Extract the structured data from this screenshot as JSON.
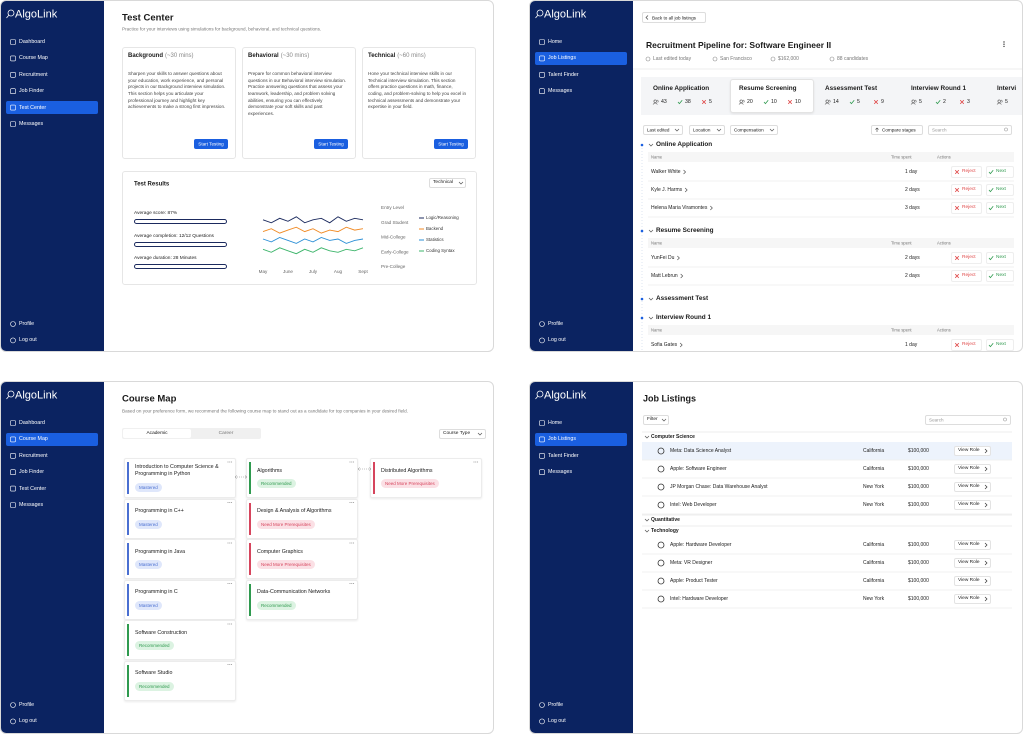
{
  "test_center": {
    "sidebar": {
      "logo": "AlgoLink",
      "nav": [
        "Dashboard",
        "Course Map",
        "Recruitment",
        "Job Finder",
        "Test Center",
        "Messages"
      ],
      "active": 4,
      "footer": [
        "Profile",
        "Log out"
      ]
    },
    "title": "Test Center",
    "subtitle": "Practice for your interviews using simulations for background, behavioral, and technical questions.",
    "cards": [
      {
        "title": "Background",
        "duration": "(~30 mins)",
        "text": "Sharpen your skills to answer questions about your education, work experience, and personal projects in our Background interview simulation. This section helps you articulate your professional journey and highlight key achievements to make a strong first impression.",
        "button": "Start Testing"
      },
      {
        "title": "Behavioral",
        "duration": "(~30 mins)",
        "text": "Prepare for common behavioral interview questions in our Behavioral interview simulation. Practice answering questions that assess your teamwork, leadership, and problem solving abilities, ensuring you can effectively demonstrate your soft skills and past experiences.",
        "button": "Start Testing"
      },
      {
        "title": "Technical",
        "duration": "(~60 mins)",
        "text": "Hone your technical interview skills in our Technical interview simulation. This section offers practice questions in math, finance, coding, and problem-solving to help you excel in technical assessments and demonstrate your expertise in your field.",
        "button": "Start Testing"
      }
    ],
    "results": {
      "title": "Test Results",
      "filter": "Technical",
      "stats": [
        "Average score: 87%",
        "Average completion: 12/12 Questions",
        "Average duration: 28 Minutes"
      ],
      "chart_data": {
        "type": "line",
        "categories": [
          "May",
          null,
          null,
          "June",
          null,
          null,
          "July",
          null,
          null,
          "Aug",
          null,
          null,
          "Sept"
        ],
        "ylim": [
          0,
          4
        ],
        "yticks": [
          {
            "value": 4,
            "label": "Entry Level"
          },
          {
            "value": 3,
            "label": "Grad Student"
          },
          {
            "value": 2,
            "label": "Mid-College"
          },
          {
            "value": 1,
            "label": "Early-College"
          },
          {
            "value": 0,
            "label": "Pre-College"
          }
        ],
        "series": [
          {
            "name": "Logic/Reasoning",
            "color": "#1b2a5e",
            "values": [
              3.2,
              3.0,
              3.3,
              3.1,
              3.4,
              3.0,
              3.2,
              3.3,
              3.0,
              3.4,
              3.1,
              3.3,
              3.2
            ]
          },
          {
            "name": "Backend",
            "color": "#f08a24",
            "values": [
              2.4,
              2.6,
              2.3,
              2.5,
              2.7,
              2.4,
              2.6,
              2.3,
              2.5,
              2.4,
              2.7,
              2.5,
              2.6
            ]
          },
          {
            "name": "Statistics",
            "color": "#2b8fd6",
            "values": [
              1.9,
              1.7,
              2.0,
              1.8,
              1.6,
              1.9,
              1.7,
              2.0,
              1.8,
              1.9,
              1.6,
              1.8,
              1.9
            ]
          },
          {
            "name": "Coding Syntax",
            "color": "#3db56b",
            "values": [
              1.2,
              1.0,
              1.3,
              1.1,
              0.9,
              1.2,
              1.0,
              1.3,
              1.1,
              1.0,
              1.2,
              1.1,
              1.3
            ]
          }
        ]
      }
    }
  },
  "recruitment": {
    "sidebar": {
      "logo": "AlgoLink",
      "nav": [
        "Home",
        "Job Listings",
        "Talent Finder",
        "Messages"
      ],
      "active": 1,
      "footer": [
        "Profile",
        "Log out"
      ]
    },
    "back": "Back to all job listings",
    "title": "Recruitment Pipeline for: Software Engineer II",
    "meta": [
      "Last edited today",
      "San Francisco",
      "$162,000",
      "88 candidates"
    ],
    "stages": [
      {
        "name": "Online Application",
        "counts": [
          43,
          38,
          5
        ]
      },
      {
        "name": "Resume Screening",
        "counts": [
          20,
          10,
          10
        ]
      },
      {
        "name": "Assessment Test",
        "counts": [
          14,
          5,
          9
        ]
      },
      {
        "name": "Interview Round 1",
        "counts": [
          5,
          2,
          3
        ]
      },
      {
        "name": "Intervi",
        "counts": [
          5
        ]
      }
    ],
    "active_stage": 1,
    "filters": [
      "Last edited",
      "Location",
      "Compensation"
    ],
    "compare": "Compare stages",
    "search": "Search",
    "columns": [
      "Name",
      "Time spent",
      "Actions"
    ],
    "actions": [
      "Reject",
      "Next"
    ],
    "groups": [
      {
        "name": "Online Application",
        "rows": [
          [
            "Walker White",
            "1 day"
          ],
          [
            "Kyle J. Harms",
            "2 days"
          ],
          [
            "Helena Maria Viramontes",
            "3 days"
          ]
        ]
      },
      {
        "name": "Resume Screening",
        "rows": [
          [
            "YunFei Du",
            "2 days"
          ],
          [
            "Matt Lebrun",
            "2 days"
          ]
        ]
      },
      {
        "name": "Assessment Test",
        "rows": []
      },
      {
        "name": "Interview Round 1",
        "rows": [
          [
            "Sofia Gates",
            "1 day"
          ]
        ]
      }
    ]
  },
  "course_map": {
    "sidebar": {
      "logo": "AlgoLink",
      "nav": [
        "Dashboard",
        "Course Map",
        "Recruitment",
        "Job Finder",
        "Test Center",
        "Messages"
      ],
      "active": 1,
      "footer": [
        "Profile",
        "Log out"
      ]
    },
    "title": "Course Map",
    "subtitle": "Based on your preference form, we recommend the following course map to stand out as a candidate for top companies in your desired field.",
    "tabs": [
      "Academic",
      "Career"
    ],
    "active_tab": 0,
    "filter": "Course Type",
    "statuses": [
      {
        "label": "Mastered",
        "color": "#4a6fd1",
        "bg": "#dfe7fb"
      },
      {
        "label": "Recommended",
        "color": "#2f9a4f",
        "bg": "#dcf3e2"
      },
      {
        "label": "Need More Prerequisites",
        "color": "#d6455d",
        "bg": "#fbe0e5"
      }
    ],
    "columns": [
      [
        {
          "name": "Introduction to Computer Science & Programming in Python",
          "status": 0
        },
        {
          "name": "Programming in C++",
          "status": 0
        },
        {
          "name": "Programming in Java",
          "status": 0
        },
        {
          "name": "Programming in C",
          "status": 0
        },
        {
          "name": "Software Construction",
          "status": 1
        },
        {
          "name": "Software Studio",
          "status": 1
        }
      ],
      [
        {
          "name": "Algorithms",
          "status": 1
        },
        {
          "name": "Design & Analysis of Algorithms",
          "status": 2
        },
        {
          "name": "Computer Graphics",
          "status": 2
        },
        {
          "name": "Data-Communication Networks",
          "status": 1
        }
      ],
      [
        {
          "name": "Distributed Algorithms",
          "status": 2
        }
      ]
    ]
  },
  "job_listings": {
    "sidebar": {
      "logo": "AlgoLink",
      "nav": [
        "Home",
        "Job Listings",
        "Talent Finder",
        "Messages"
      ],
      "active": 1,
      "footer": [
        "Profile",
        "Log out"
      ]
    },
    "title": "Job Listings",
    "filter": "Filter",
    "search": "Search",
    "button": "View Role",
    "selected": {
      "group": 0,
      "row": 0
    },
    "groups": [
      {
        "name": "Computer Science",
        "rows": [
          [
            "Meta: Data Science Analyst",
            "California",
            "$100,000"
          ],
          [
            "Apple: Software Engineer",
            "California",
            "$100,000"
          ],
          [
            "JP Morgan Chase: Data Warehouse Analyst",
            "New York",
            "$100,000"
          ],
          [
            "Intel: Web Developer",
            "New York",
            "$100,000"
          ]
        ]
      },
      {
        "name": "Quantitative",
        "rows": []
      },
      {
        "name": "Technology",
        "rows": [
          [
            "Apple: Hardware Developer",
            "California",
            "$100,000"
          ],
          [
            "Meta: VR Designer",
            "California",
            "$100,000"
          ],
          [
            "Apple: Product Tester",
            "California",
            "$100,000"
          ],
          [
            "Intel: Hardware Developer",
            "New York",
            "$100,000"
          ]
        ]
      }
    ]
  }
}
